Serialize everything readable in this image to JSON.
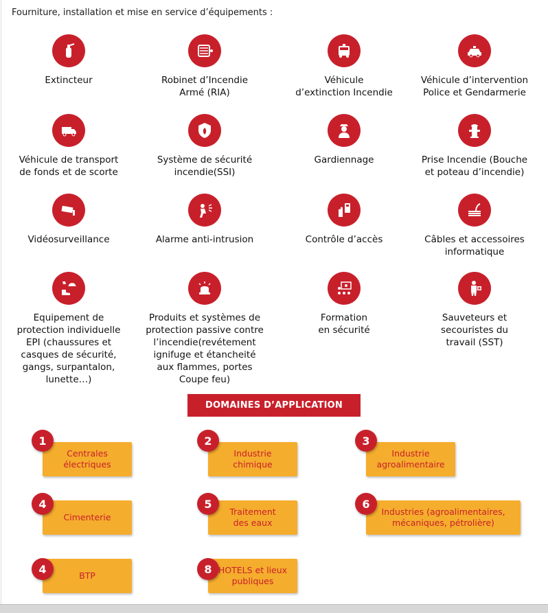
{
  "intro": "Fourniture, installation et mise en service d’équipements :",
  "colors": {
    "accent_red": "#c8202b",
    "accent_orange": "#f5ad2d"
  },
  "services": [
    {
      "label": "Extincteur",
      "icon": "fire-extinguisher-icon"
    },
    {
      "label": "Robinet d’Incendie\nArmé (RIA)",
      "icon": "fire-hose-reel-icon"
    },
    {
      "label": "Véhicule\nd’extinction  Incendie",
      "icon": "fire-truck-icon"
    },
    {
      "label": "Véhicule d’intervention\nPolice et Gendarmerie",
      "icon": "police-car-icon"
    },
    {
      "label": "Véhicule de transport\nde fonds et de scorte",
      "icon": "armored-truck-icon"
    },
    {
      "label": "Système de sécurité\nincendie(SSI)",
      "icon": "fire-shield-icon"
    },
    {
      "label": "Gardiennage",
      "icon": "security-guard-icon"
    },
    {
      "label": "Prise Incendie (Bouche\net poteau d’incendie)",
      "icon": "fire-hydrant-icon"
    },
    {
      "label": "Vidéosurveillance",
      "icon": "cctv-camera-icon"
    },
    {
      "label": "Alarme anti-intrusion",
      "icon": "burglar-alarm-icon"
    },
    {
      "label": "Contrôle d’accès",
      "icon": "access-control-icon"
    },
    {
      "label": "Câbles et accessoires\ninformatique",
      "icon": "cable-icon"
    },
    {
      "label": "Equipement de\nprotection individuelle\nEPI (chaussures et\ncasques de sécurité,\ngangs, surpantalon,\nlunette…)",
      "icon": "ppe-icon"
    },
    {
      "label": "Produits et systèmes de\nprotection passive contre\nl’incendie(revétement\nignifuge et étancheité\naux flammes, portes\nCoupe feu)",
      "icon": "alarm-beacon-icon"
    },
    {
      "label": "Formation\nen sécurité",
      "icon": "training-icon"
    },
    {
      "label": "Sauveteurs et\nsecouristes du\ntravail (SST)",
      "icon": "first-aider-icon"
    }
  ],
  "domains_title": "DOMAINES D’APPLICATION",
  "domains": [
    {
      "num": "1",
      "label": "Centrales\nélectriques"
    },
    {
      "num": "2",
      "label": "Industrie\nchimique"
    },
    {
      "num": "3",
      "label": "Industrie\nagroalimentaire"
    },
    {
      "num": "4",
      "label": "Cimenterie"
    },
    {
      "num": "5",
      "label": "Traitement\ndes eaux"
    },
    {
      "num": "6",
      "label": "Industries (agroalimentaires,\nmécaniques, pétrolière)"
    },
    {
      "num": "4",
      "label": "BTP"
    },
    {
      "num": "8",
      "label": "HOTELS et lieux\npubliques"
    }
  ]
}
